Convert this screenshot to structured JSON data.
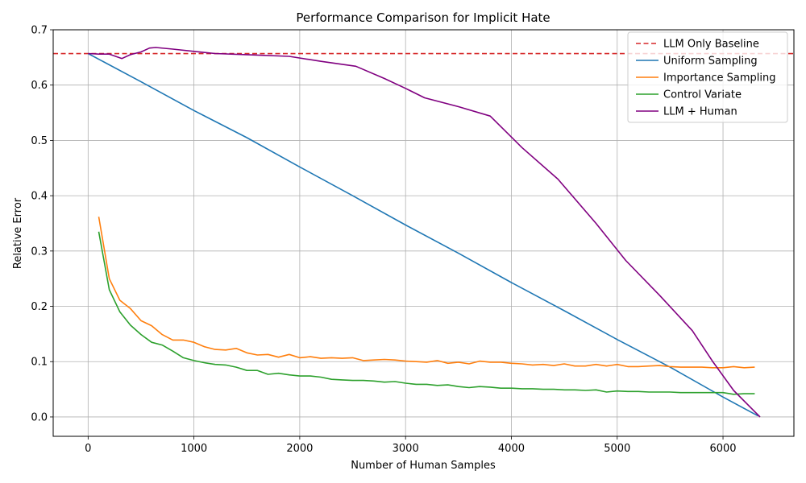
{
  "chart_data": {
    "type": "line",
    "title": "Performance Comparison for Implicit Hate",
    "xlabel": "Number of Human Samples",
    "ylabel": "Relative Error",
    "xlim": [
      -330,
      6670
    ],
    "ylim": [
      -0.035,
      0.7
    ],
    "xticks": [
      0,
      1000,
      2000,
      3000,
      4000,
      5000,
      6000
    ],
    "xtick_labels": [
      "0",
      "1000",
      "2000",
      "3000",
      "4000",
      "5000",
      "6000"
    ],
    "yticks": [
      0.0,
      0.1,
      0.2,
      0.3,
      0.4,
      0.5,
      0.6,
      0.7
    ],
    "ytick_labels": [
      "0.0",
      "0.1",
      "0.2",
      "0.3",
      "0.4",
      "0.5",
      "0.6",
      "0.7"
    ],
    "grid": true,
    "legend_position": "top-right",
    "baseline": {
      "name": "LLM Only Baseline",
      "value": 0.657,
      "color": "#d62728",
      "style": "dashed"
    },
    "series": [
      {
        "name": "Uniform Sampling",
        "color": "#1f77b4",
        "x": [
          0,
          500,
          1000,
          1500,
          2000,
          2500,
          3000,
          3500,
          4000,
          4500,
          5000,
          5500,
          6000,
          6330
        ],
        "y": [
          0.657,
          0.606,
          0.554,
          0.505,
          0.452,
          0.4,
          0.347,
          0.296,
          0.243,
          0.192,
          0.14,
          0.09,
          0.036,
          0.002
        ]
      },
      {
        "name": "Importance Sampling",
        "color": "#ff7f0e",
        "x": [
          100,
          200,
          300,
          400,
          500,
          600,
          700,
          800,
          900,
          1000,
          1100,
          1200,
          1300,
          1400,
          1500,
          1600,
          1700,
          1800,
          1900,
          2000,
          2100,
          2200,
          2300,
          2400,
          2500,
          2600,
          2700,
          2800,
          2900,
          3000,
          3100,
          3200,
          3300,
          3400,
          3500,
          3600,
          3700,
          3800,
          3900,
          4000,
          4100,
          4200,
          4300,
          4400,
          4500,
          4600,
          4700,
          4800,
          4900,
          5000,
          5100,
          5200,
          5300,
          5400,
          5500,
          5600,
          5700,
          5800,
          5900,
          6000,
          6100,
          6200,
          6300
        ],
        "y": [
          0.362,
          0.25,
          0.211,
          0.196,
          0.174,
          0.165,
          0.149,
          0.139,
          0.139,
          0.135,
          0.127,
          0.122,
          0.121,
          0.124,
          0.116,
          0.112,
          0.113,
          0.108,
          0.113,
          0.107,
          0.109,
          0.106,
          0.107,
          0.106,
          0.107,
          0.102,
          0.103,
          0.104,
          0.103,
          0.101,
          0.1,
          0.099,
          0.102,
          0.097,
          0.099,
          0.096,
          0.101,
          0.099,
          0.099,
          0.097,
          0.096,
          0.094,
          0.095,
          0.093,
          0.096,
          0.092,
          0.092,
          0.095,
          0.092,
          0.095,
          0.091,
          0.091,
          0.092,
          0.093,
          0.091,
          0.09,
          0.09,
          0.09,
          0.089,
          0.089,
          0.091,
          0.089,
          0.09
        ]
      },
      {
        "name": "Control Variate",
        "color": "#2ca02c",
        "x": [
          100,
          200,
          300,
          400,
          500,
          600,
          700,
          800,
          900,
          1000,
          1100,
          1200,
          1300,
          1400,
          1500,
          1600,
          1700,
          1800,
          1900,
          2000,
          2100,
          2200,
          2300,
          2400,
          2500,
          2600,
          2700,
          2800,
          2900,
          3000,
          3100,
          3200,
          3300,
          3400,
          3500,
          3600,
          3700,
          3800,
          3900,
          4000,
          4100,
          4200,
          4300,
          4400,
          4500,
          4600,
          4700,
          4800,
          4900,
          5000,
          5100,
          5200,
          5300,
          5400,
          5500,
          5600,
          5700,
          5800,
          5900,
          6000,
          6100,
          6200,
          6300
        ],
        "y": [
          0.335,
          0.23,
          0.19,
          0.166,
          0.149,
          0.135,
          0.13,
          0.119,
          0.107,
          0.102,
          0.098,
          0.095,
          0.094,
          0.09,
          0.084,
          0.084,
          0.077,
          0.079,
          0.076,
          0.074,
          0.074,
          0.072,
          0.068,
          0.067,
          0.066,
          0.066,
          0.065,
          0.063,
          0.064,
          0.061,
          0.059,
          0.059,
          0.057,
          0.058,
          0.055,
          0.053,
          0.055,
          0.054,
          0.052,
          0.052,
          0.051,
          0.051,
          0.05,
          0.05,
          0.049,
          0.049,
          0.048,
          0.049,
          0.045,
          0.047,
          0.046,
          0.046,
          0.045,
          0.045,
          0.045,
          0.044,
          0.044,
          0.044,
          0.044,
          0.044,
          0.041,
          0.042,
          0.042
        ]
      },
      {
        "name": "LLM + Human",
        "color": "#800080",
        "x": [
          0,
          100,
          200,
          320,
          400,
          500,
          580,
          640,
          800,
          1000,
          1200,
          1500,
          1900,
          2200,
          2530,
          2800,
          3000,
          3180,
          3500,
          3800,
          4100,
          4440,
          4800,
          5080,
          5400,
          5710,
          5900,
          6100,
          6350
        ],
        "y": [
          0.657,
          0.656,
          0.656,
          0.648,
          0.655,
          0.66,
          0.667,
          0.668,
          0.665,
          0.661,
          0.657,
          0.655,
          0.652,
          0.643,
          0.634,
          0.612,
          0.594,
          0.577,
          0.561,
          0.544,
          0.487,
          0.43,
          0.35,
          0.283,
          0.22,
          0.156,
          0.101,
          0.048,
          0.0
        ]
      }
    ]
  }
}
